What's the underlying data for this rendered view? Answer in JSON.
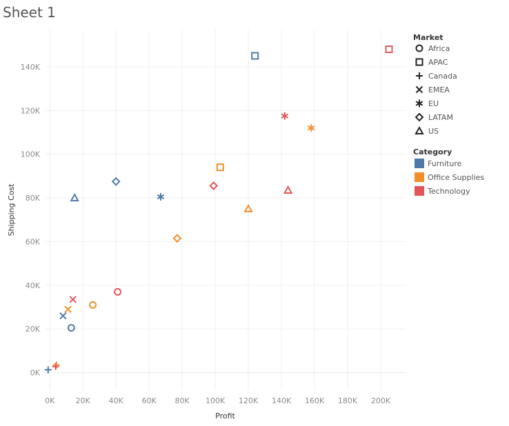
{
  "sheet": {
    "title": "Sheet 1"
  },
  "chart_data": {
    "type": "scatter",
    "title": "",
    "xlabel": "Profit",
    "ylabel": "Shipping Cost",
    "xlim": [
      -3000,
      215000
    ],
    "ylim": [
      -8000,
      157000
    ],
    "x_ticks": [
      0,
      20000,
      40000,
      60000,
      80000,
      100000,
      120000,
      140000,
      160000,
      180000,
      200000
    ],
    "x_tick_labels": [
      "0K",
      "20K",
      "40K",
      "60K",
      "80K",
      "100K",
      "120K",
      "140K",
      "160K",
      "180K",
      "200K"
    ],
    "y_ticks": [
      0,
      20000,
      40000,
      60000,
      80000,
      100000,
      120000,
      140000
    ],
    "y_tick_labels": [
      "0K",
      "20K",
      "40K",
      "60K",
      "80K",
      "100K",
      "120K",
      "140K"
    ],
    "grid": true,
    "legends": [
      {
        "title": "Market",
        "placement": "right-top",
        "entries": [
          {
            "label": "Africa",
            "shape": "circle"
          },
          {
            "label": "APAC",
            "shape": "square"
          },
          {
            "label": "Canada",
            "shape": "plus"
          },
          {
            "label": "EMEA",
            "shape": "cross"
          },
          {
            "label": "EU",
            "shape": "asterisk"
          },
          {
            "label": "LATAM",
            "shape": "diamond"
          },
          {
            "label": "US",
            "shape": "triangle"
          }
        ]
      },
      {
        "title": "Category",
        "placement": "right",
        "entries": [
          {
            "label": "Furniture",
            "color": "#4e79a7"
          },
          {
            "label": "Office Supplies",
            "color": "#f28e2b"
          },
          {
            "label": "Technology",
            "color": "#e15759"
          }
        ]
      }
    ],
    "points": [
      {
        "market": "Africa",
        "category": "Furniture",
        "x": 13000,
        "y": 20500
      },
      {
        "market": "Africa",
        "category": "Office Supplies",
        "x": 26000,
        "y": 31000
      },
      {
        "market": "Africa",
        "category": "Technology",
        "x": 41000,
        "y": 37000
      },
      {
        "market": "APAC",
        "category": "Furniture",
        "x": 124000,
        "y": 145000
      },
      {
        "market": "APAC",
        "category": "Office Supplies",
        "x": 103000,
        "y": 94000
      },
      {
        "market": "APAC",
        "category": "Technology",
        "x": 205000,
        "y": 148000
      },
      {
        "market": "Canada",
        "category": "Furniture",
        "x": -1000,
        "y": 1300
      },
      {
        "market": "Canada",
        "category": "Office Supplies",
        "x": 4000,
        "y": 3500
      },
      {
        "market": "Canada",
        "category": "Technology",
        "x": 3500,
        "y": 2800
      },
      {
        "market": "EMEA",
        "category": "Furniture",
        "x": 8000,
        "y": 26000
      },
      {
        "market": "EMEA",
        "category": "Office Supplies",
        "x": 11000,
        "y": 29000
      },
      {
        "market": "EMEA",
        "category": "Technology",
        "x": 14000,
        "y": 33500
      },
      {
        "market": "EU",
        "category": "Furniture",
        "x": 67000,
        "y": 80500
      },
      {
        "market": "EU",
        "category": "Office Supplies",
        "x": 158000,
        "y": 112000
      },
      {
        "market": "EU",
        "category": "Technology",
        "x": 142000,
        "y": 117500
      },
      {
        "market": "LATAM",
        "category": "Furniture",
        "x": 40000,
        "y": 87500
      },
      {
        "market": "LATAM",
        "category": "Office Supplies",
        "x": 77000,
        "y": 61500
      },
      {
        "market": "LATAM",
        "category": "Technology",
        "x": 99000,
        "y": 85500
      },
      {
        "market": "US",
        "category": "Furniture",
        "x": 15000,
        "y": 80000
      },
      {
        "market": "US",
        "category": "Office Supplies",
        "x": 120000,
        "y": 75000
      },
      {
        "market": "US",
        "category": "Technology",
        "x": 144000,
        "y": 83500
      }
    ]
  }
}
